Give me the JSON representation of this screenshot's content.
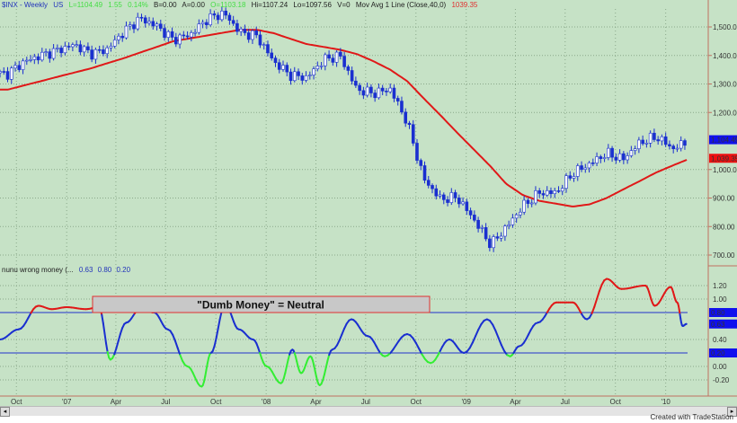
{
  "header": {
    "symbol": "$INX - Weekly",
    "exchange": "US",
    "last": "L=1104.49",
    "change": "1.55",
    "change_pct": "0.14%",
    "bid": "B=0.00",
    "ask": "A=0.00",
    "open": "O=1103.18",
    "high": "Hi=1107.24",
    "low": "Lo=1097.56",
    "volume": "V=0",
    "indicator": "Mov Avg 1 Line (Close,40,0)",
    "ma_value": "1039.35"
  },
  "lower_header": {
    "name": "nunu wrong money (...",
    "v1": "0.63",
    "v2": "0.80",
    "v3": "0.20"
  },
  "annotation": "\"Dumb Money\" = Neutral",
  "footer": "Created with TradeStation",
  "colors": {
    "background": "#c6e2c6",
    "candles": "#1a2fd0",
    "ma": "#e01818",
    "above": "#e01818",
    "middle": "#1a2fd0",
    "below": "#33ee33",
    "axis_line": "#c07060"
  },
  "chart_data": [
    {
      "type": "candlestick",
      "title": "$INX - Weekly",
      "y_ticks": [
        "1,500.00",
        "1,400.00",
        "1,300.00",
        "1,200.00",
        "1,000.00",
        "900.00",
        "800.00",
        "700.00"
      ],
      "y_tick_values": [
        1500,
        1400,
        1300,
        1200,
        1000,
        900,
        800,
        700
      ],
      "ylim": [
        680,
        1560
      ],
      "x_ticks": [
        "Oct",
        "'07",
        "Apr",
        "Jul",
        "Oct",
        "'08",
        "Apr",
        "Jul",
        "Oct",
        "'09",
        "Apr",
        "Jul",
        "Oct",
        "'10"
      ],
      "x_tick_dates": [
        "2006-10-01",
        "2007-01-01",
        "2007-04-01",
        "2007-07-01",
        "2007-10-01",
        "2008-01-01",
        "2008-04-01",
        "2008-07-01",
        "2008-10-01",
        "2009-01-01",
        "2009-04-01",
        "2009-07-01",
        "2009-10-01",
        "2010-01-01"
      ],
      "xlim": [
        "2006-09-01",
        "2010-03-01"
      ],
      "last_price_label": "1,104.49",
      "ma_label": "1,039.35",
      "months": [
        "2006-09",
        "2006-10",
        "2006-11",
        "2006-12",
        "2007-01",
        "2007-02",
        "2007-03",
        "2007-04",
        "2007-05",
        "2007-06",
        "2007-07",
        "2007-08",
        "2007-09",
        "2007-10",
        "2007-11",
        "2007-12",
        "2008-01",
        "2008-02",
        "2008-03",
        "2008-04",
        "2008-05",
        "2008-06",
        "2008-07",
        "2008-08",
        "2008-09",
        "2008-10",
        "2008-11",
        "2008-12",
        "2009-01",
        "2009-02",
        "2009-03",
        "2009-04",
        "2009-05",
        "2009-06",
        "2009-07",
        "2009-08",
        "2009-09",
        "2009-10",
        "2009-11",
        "2009-12",
        "2010-01",
        "2010-02"
      ],
      "close": [
        1336,
        1378,
        1400,
        1418,
        1438,
        1406,
        1420,
        1482,
        1530,
        1503,
        1455,
        1473,
        1527,
        1549,
        1481,
        1468,
        1378,
        1330,
        1322,
        1385,
        1400,
        1280,
        1267,
        1282,
        1166,
        968,
        896,
        903,
        825,
        735,
        797,
        872,
        919,
        919,
        987,
        1020,
        1057,
        1036,
        1095,
        1115,
        1073,
        1104
      ],
      "series": [
        {
          "name": "Mov Avg 1 Line (Close,40,0)",
          "values": [
            1280,
            1295,
            1310,
            1325,
            1340,
            1355,
            1372,
            1390,
            1410,
            1430,
            1450,
            1460,
            1470,
            1480,
            1490,
            1490,
            1478,
            1458,
            1440,
            1430,
            1420,
            1405,
            1380,
            1350,
            1310,
            1250,
            1190,
            1130,
            1070,
            1010,
            950,
            910,
            890,
            880,
            870,
            878,
            900,
            930,
            960,
            990,
            1015,
            1039
          ]
        }
      ]
    },
    {
      "type": "line",
      "title": "nunu wrong money (...",
      "y_ticks": [
        "1.20",
        "1.00",
        "0.40",
        "0.00",
        "-0.20"
      ],
      "y_tick_values": [
        1.2,
        1.0,
        0.4,
        0.0,
        -0.2
      ],
      "ylim": [
        -0.35,
        1.45
      ],
      "levels": [
        {
          "value": 0.8,
          "label": "0.80"
        },
        {
          "value": 0.2,
          "label": "0.20"
        }
      ],
      "last_label": "0.63",
      "points": [
        [
          "2006-09-01",
          0.4
        ],
        [
          "2006-10-05",
          0.55
        ],
        [
          "2006-11-10",
          0.9
        ],
        [
          "2006-12-05",
          0.85
        ],
        [
          "2007-01-01",
          0.88
        ],
        [
          "2007-02-05",
          0.85
        ],
        [
          "2007-03-01",
          0.88
        ],
        [
          "2007-03-22",
          0.1
        ],
        [
          "2007-04-20",
          0.65
        ],
        [
          "2007-05-15",
          0.85
        ],
        [
          "2007-06-10",
          0.8
        ],
        [
          "2007-07-05",
          0.55
        ],
        [
          "2007-08-10",
          0.0
        ],
        [
          "2007-09-05",
          -0.3
        ],
        [
          "2007-09-22",
          0.2
        ],
        [
          "2007-10-18",
          0.92
        ],
        [
          "2007-11-12",
          0.55
        ],
        [
          "2007-12-08",
          0.4
        ],
        [
          "2008-01-02",
          0.0
        ],
        [
          "2008-01-28",
          -0.25
        ],
        [
          "2008-02-18",
          0.25
        ],
        [
          "2008-03-05",
          -0.1
        ],
        [
          "2008-03-22",
          0.15
        ],
        [
          "2008-04-08",
          -0.28
        ],
        [
          "2008-05-01",
          0.25
        ],
        [
          "2008-06-05",
          0.7
        ],
        [
          "2008-07-05",
          0.45
        ],
        [
          "2008-08-05",
          0.15
        ],
        [
          "2008-09-15",
          0.48
        ],
        [
          "2008-10-28",
          0.05
        ],
        [
          "2008-12-01",
          0.4
        ],
        [
          "2008-12-28",
          0.2
        ],
        [
          "2009-02-08",
          0.7
        ],
        [
          "2009-03-22",
          0.15
        ],
        [
          "2009-04-08",
          0.3
        ],
        [
          "2009-05-12",
          0.65
        ],
        [
          "2009-06-15",
          0.95
        ],
        [
          "2009-07-15",
          0.95
        ],
        [
          "2009-08-10",
          0.7
        ],
        [
          "2009-09-15",
          1.3
        ],
        [
          "2009-10-12",
          1.15
        ],
        [
          "2009-11-25",
          1.2
        ],
        [
          "2009-12-12",
          0.9
        ],
        [
          "2010-01-10",
          1.18
        ],
        [
          "2010-01-22",
          0.95
        ],
        [
          "2010-02-01",
          0.6
        ],
        [
          "2010-02-08",
          0.63
        ]
      ]
    }
  ]
}
